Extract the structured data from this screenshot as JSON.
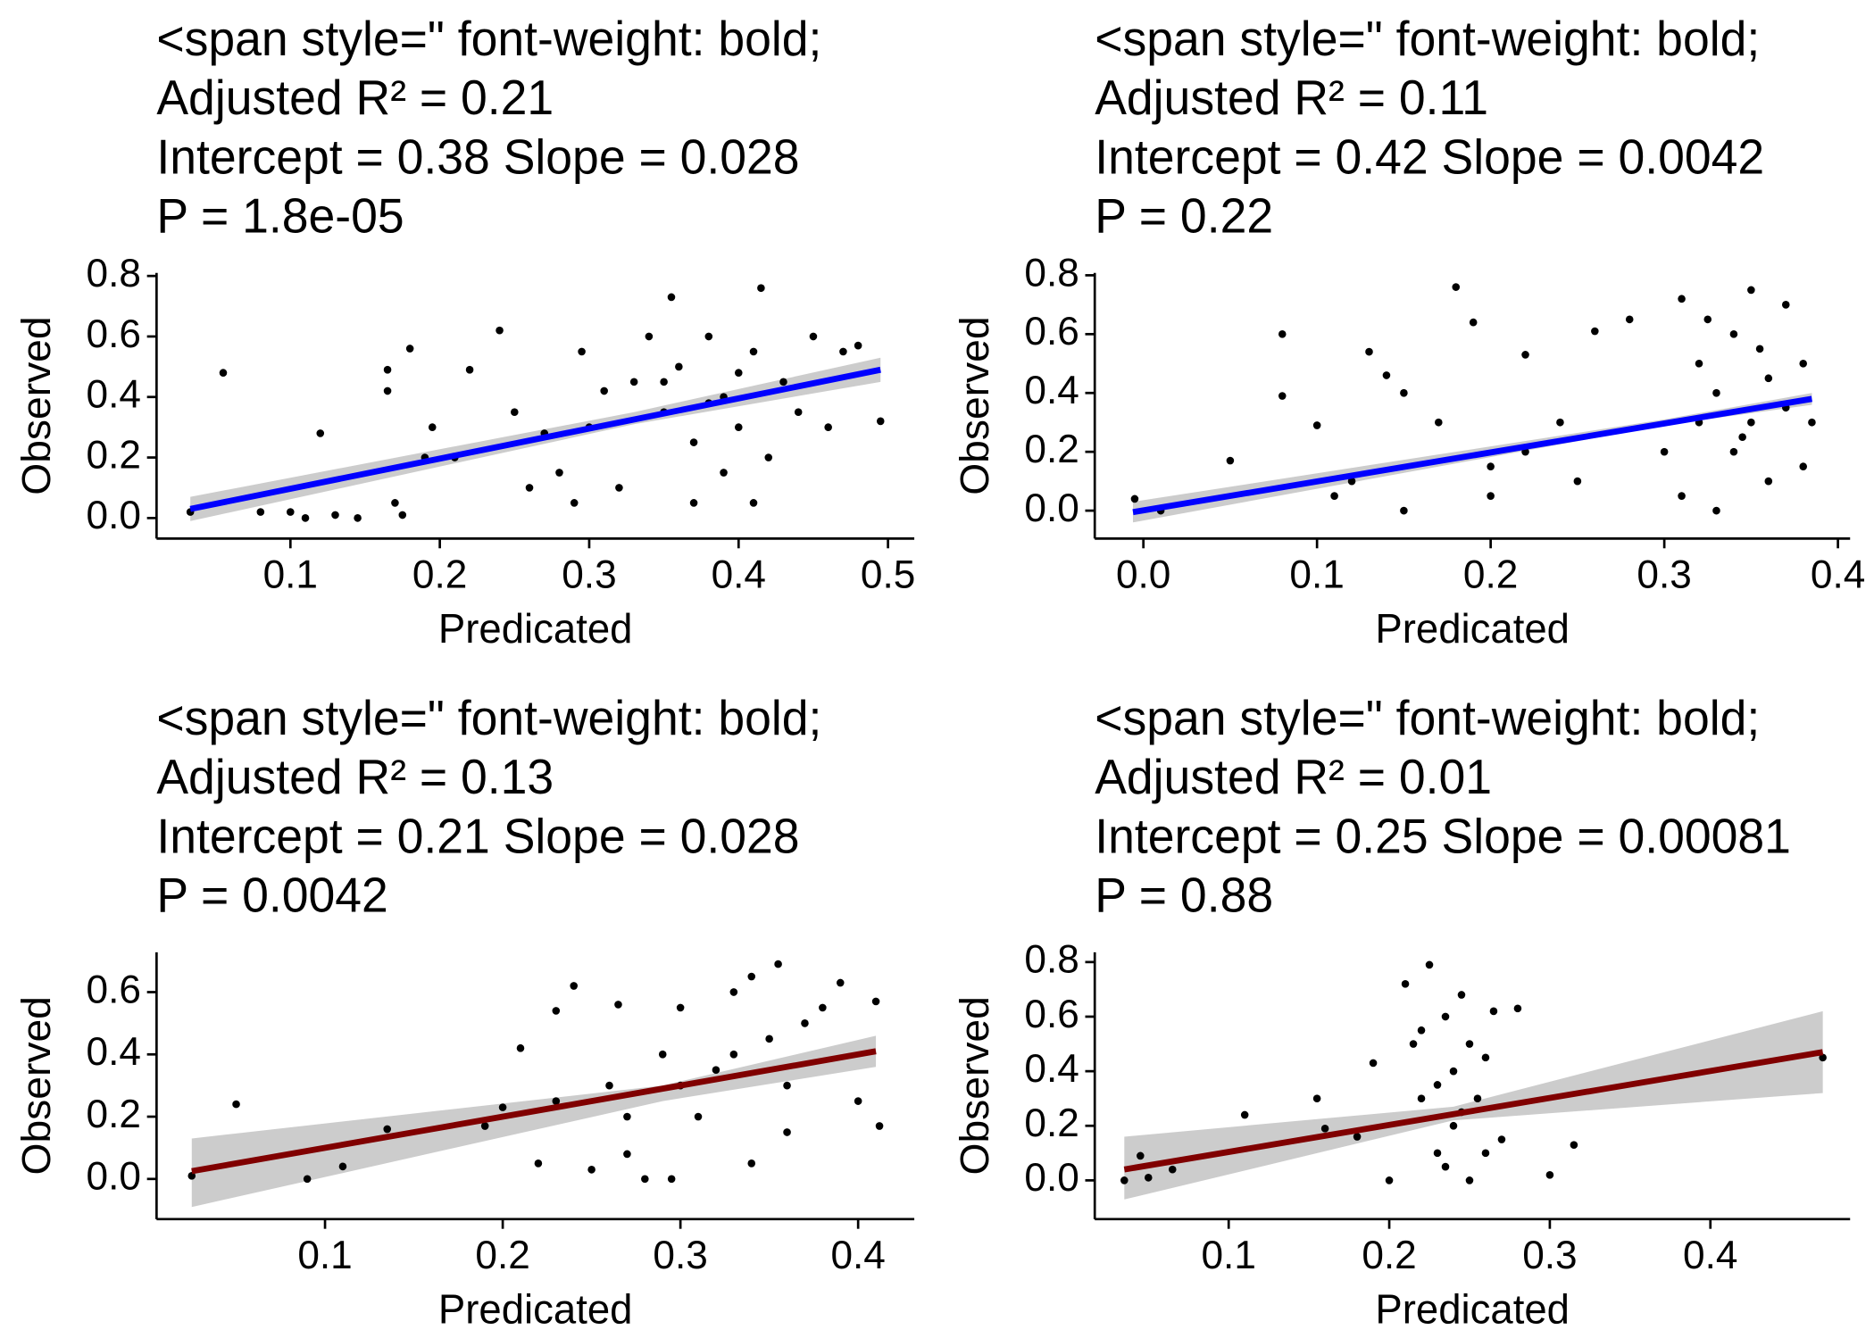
{
  "chart_data": [
    {
      "type": "scatter",
      "title": [
        "<span style=\" font-weight: bold;",
        "Adjusted R² =  0.21",
        "Intercept = 0.38  Slope = 0.028",
        "P = 1.8e-05"
      ],
      "x_label": "Predicated",
      "y_label": "Observed",
      "xlim": [
        0.0104,
        0.5176
      ],
      "ylim": [
        -0.068,
        0.81
      ],
      "xticks": [
        0.1,
        0.2,
        0.3,
        0.4,
        0.5
      ],
      "yticks": [
        {
          "value": 0,
          "label": "0.0"
        },
        0.2,
        0.4,
        0.6,
        0.8
      ],
      "point_color": "#000000",
      "x": [
        0.033,
        0.055,
        0.08,
        0.1,
        0.11,
        0.12,
        0.13,
        0.145,
        0.165,
        0.165,
        0.17,
        0.175,
        0.18,
        0.19,
        0.195,
        0.21,
        0.22,
        0.24,
        0.25,
        0.26,
        0.27,
        0.28,
        0.29,
        0.295,
        0.3,
        0.31,
        0.32,
        0.33,
        0.34,
        0.35,
        0.355,
        0.36,
        0.37,
        0.38,
        0.39,
        0.4,
        0.41,
        0.415,
        0.42,
        0.43,
        0.44,
        0.45,
        0.46,
        0.47,
        0.48,
        0.495,
        0.37,
        0.39,
        0.41,
        0.35,
        0.38,
        0.4
      ],
      "y": [
        0.02,
        0.48,
        0.02,
        0.02,
        0.0,
        0.28,
        0.01,
        0.0,
        0.49,
        0.42,
        0.05,
        0.01,
        0.56,
        0.2,
        0.3,
        0.2,
        0.49,
        0.62,
        0.35,
        0.1,
        0.28,
        0.15,
        0.05,
        0.55,
        0.3,
        0.42,
        0.1,
        0.45,
        0.6,
        0.35,
        0.73,
        0.5,
        0.25,
        0.6,
        0.4,
        0.3,
        0.55,
        0.76,
        0.2,
        0.45,
        0.35,
        0.6,
        0.3,
        0.55,
        0.57,
        0.32,
        0.05,
        0.15,
        0.05,
        0.45,
        0.38,
        0.48
      ],
      "fit": {
        "color": "#0000ff",
        "x": [
          0.033,
          0.495
        ],
        "y": [
          0.03,
          0.49
        ]
      },
      "band": {
        "color": "#cccccc",
        "x": [
          0.033,
          0.33,
          0.495
        ],
        "lower": [
          -0.01,
          0.31,
          0.45
        ],
        "upper": [
          0.07,
          0.35,
          0.53
        ]
      }
    },
    {
      "type": "scatter",
      "title": [
        "<span style=\" font-weight: bold;",
        "Adjusted R² =  0.11",
        "Intercept = 0.42  Slope = 0.0042",
        "P = 0.22"
      ],
      "x_label": "Predicated",
      "y_label": "Observed",
      "xlim": [
        -0.028,
        0.407
      ],
      "ylim": [
        -0.095,
        0.808
      ],
      "xticks": [
        {
          "value": 0,
          "label": "0.0"
        },
        0.1,
        0.2,
        0.3,
        0.4
      ],
      "yticks": [
        {
          "value": 0,
          "label": "0.0"
        },
        0.2,
        0.4,
        0.6,
        0.8
      ],
      "point_color": "#000000",
      "x": [
        -0.005,
        0.01,
        0.05,
        0.08,
        0.08,
        0.1,
        0.12,
        0.13,
        0.14,
        0.15,
        0.18,
        0.17,
        0.19,
        0.2,
        0.22,
        0.24,
        0.25,
        0.26,
        0.28,
        0.3,
        0.31,
        0.32,
        0.33,
        0.33,
        0.34,
        0.34,
        0.35,
        0.35,
        0.36,
        0.36,
        0.37,
        0.37,
        0.38,
        0.38,
        0.32,
        0.31,
        0.385,
        0.355,
        0.325,
        0.345,
        0.15,
        0.2,
        0.11,
        0.22
      ],
      "y": [
        0.04,
        0.0,
        0.17,
        0.6,
        0.39,
        0.29,
        0.1,
        0.54,
        0.46,
        0.4,
        0.76,
        0.3,
        0.64,
        0.15,
        0.53,
        0.3,
        0.1,
        0.61,
        0.65,
        0.2,
        0.72,
        0.5,
        0.4,
        0.0,
        0.6,
        0.2,
        0.75,
        0.3,
        0.45,
        0.1,
        0.7,
        0.35,
        0.5,
        0.15,
        0.3,
        0.05,
        0.3,
        0.55,
        0.65,
        0.25,
        0.0,
        0.05,
        0.05,
        0.2
      ],
      "fit": {
        "color": "#0000ff",
        "x": [
          -0.006,
          0.385
        ],
        "y": [
          -0.005,
          0.38
        ]
      },
      "band": {
        "color": "#cccccc",
        "x": [
          -0.006,
          0.3,
          0.385
        ],
        "lower": [
          -0.04,
          0.29,
          0.36
        ],
        "upper": [
          0.03,
          0.31,
          0.4
        ]
      }
    },
    {
      "type": "scatter",
      "title": [
        "<span style=\" font-weight: bold;",
        "Adjusted R² =  0.13",
        "Intercept = 0.21  Slope = 0.028",
        "P = 0.0042"
      ],
      "x_label": "Predicated",
      "y_label": "Observed",
      "xlim": [
        0.0052,
        0.4316
      ],
      "ylim": [
        -0.129,
        0.728
      ],
      "xticks": [
        0.1,
        0.2,
        0.3,
        0.4
      ],
      "yticks": [
        {
          "value": 0,
          "label": "0.0"
        },
        0.2,
        0.4,
        0.6
      ],
      "point_color": "#000000",
      "x": [
        0.025,
        0.05,
        0.09,
        0.11,
        0.135,
        0.19,
        0.2,
        0.21,
        0.22,
        0.23,
        0.24,
        0.25,
        0.26,
        0.265,
        0.27,
        0.28,
        0.29,
        0.295,
        0.3,
        0.31,
        0.32,
        0.33,
        0.34,
        0.35,
        0.355,
        0.36,
        0.37,
        0.38,
        0.39,
        0.4,
        0.41,
        0.412,
        0.34,
        0.36,
        0.3,
        0.27,
        0.23,
        0.33
      ],
      "y": [
        0.01,
        0.24,
        0.0,
        0.04,
        0.16,
        0.17,
        0.23,
        0.42,
        0.05,
        0.54,
        0.62,
        0.03,
        0.3,
        0.56,
        0.08,
        0.0,
        0.4,
        0.0,
        0.55,
        0.2,
        0.35,
        0.6,
        0.65,
        0.45,
        0.69,
        0.3,
        0.5,
        0.55,
        0.63,
        0.25,
        0.57,
        0.17,
        0.05,
        0.15,
        0.3,
        0.2,
        0.25,
        0.4
      ],
      "fit": {
        "color": "#800000",
        "x": [
          0.025,
          0.41
        ],
        "y": [
          0.025,
          0.41
        ]
      },
      "band": {
        "color": "#cccccc",
        "x": [
          0.025,
          0.29,
          0.41
        ],
        "lower": [
          -0.09,
          0.25,
          0.36
        ],
        "upper": [
          0.13,
          0.3,
          0.46
        ]
      }
    },
    {
      "type": "scatter",
      "title": [
        "<span style=\" font-weight: bold;",
        "Adjusted R² =  0.01",
        "Intercept = 0.25  Slope = 0.00081",
        "P = 0.88"
      ],
      "x_label": "Predicated",
      "y_label": "Observed",
      "xlim": [
        0.0166,
        0.487
      ],
      "ylim": [
        -0.142,
        0.836
      ],
      "xticks": [
        0.1,
        0.2,
        0.3,
        0.4
      ],
      "yticks": [
        {
          "value": 0,
          "label": "0.0"
        },
        0.2,
        0.4,
        0.6,
        0.8
      ],
      "point_color": "#000000",
      "x": [
        0.035,
        0.045,
        0.05,
        0.065,
        0.11,
        0.155,
        0.16,
        0.18,
        0.19,
        0.2,
        0.21,
        0.215,
        0.22,
        0.225,
        0.23,
        0.235,
        0.24,
        0.24,
        0.245,
        0.25,
        0.25,
        0.255,
        0.26,
        0.265,
        0.27,
        0.28,
        0.3,
        0.315,
        0.47,
        0.23,
        0.22,
        0.245,
        0.235,
        0.26
      ],
      "y": [
        0.0,
        0.09,
        0.01,
        0.04,
        0.24,
        0.3,
        0.19,
        0.16,
        0.43,
        0.0,
        0.72,
        0.5,
        0.3,
        0.79,
        0.1,
        0.6,
        0.4,
        0.2,
        0.68,
        0.0,
        0.5,
        0.3,
        0.1,
        0.62,
        0.15,
        0.63,
        0.02,
        0.13,
        0.45,
        0.35,
        0.55,
        0.25,
        0.05,
        0.45
      ],
      "fit": {
        "color": "#800000",
        "x": [
          0.035,
          0.47
        ],
        "y": [
          0.04,
          0.47
        ]
      },
      "band": {
        "color": "#cccccc",
        "x": [
          0.035,
          0.24,
          0.47
        ],
        "lower": [
          -0.07,
          0.22,
          0.32
        ],
        "upper": [
          0.16,
          0.27,
          0.62
        ]
      }
    }
  ]
}
